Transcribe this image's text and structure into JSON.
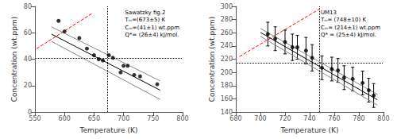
{
  "chart_data": [
    {
      "type": "line",
      "annotations": [
        "Sawatzky fig.2",
        "Tₘ=(673±5) K",
        "Cₘ=(41±1) wt.ppm",
        "Q*= (26±4) kJ/mol."
      ],
      "xlabel": "Temperature (K)",
      "ylabel": "Concentration (wt.ppm)",
      "xlim": [
        550,
        800
      ],
      "ylim": [
        0,
        80
      ],
      "xticks": [
        550,
        600,
        650,
        700,
        750,
        800
      ],
      "yticks": [
        0,
        20,
        40,
        60,
        80
      ],
      "grid": false,
      "series": [
        {
          "type": "line",
          "color": "red",
          "line_style": "dashed",
          "x": [
            553,
            648
          ],
          "values": [
            48.0,
            75.0
          ]
        },
        {
          "type": "line",
          "color": "#888888",
          "line_style": "solid",
          "x": [
            578,
            762
          ],
          "values": [
            64.5,
            23.5
          ]
        },
        {
          "type": "line",
          "color": "#888888",
          "line_style": "solid",
          "x": [
            578,
            762
          ],
          "values": [
            53.5,
            9.5
          ]
        },
        {
          "type": "line",
          "color": "black",
          "line_style": "solid",
          "x": [
            578,
            762
          ],
          "values": [
            59.0,
            16.5
          ]
        },
        {
          "type": "scatter",
          "color": "black",
          "marker": "circle",
          "x": [
            590,
            600,
            625,
            638,
            650,
            658,
            665,
            675,
            682,
            695,
            700,
            707,
            718,
            728,
            757
          ],
          "values": [
            69,
            61,
            56,
            48,
            43,
            40,
            39,
            43,
            41,
            30,
            35,
            35,
            28,
            27,
            21
          ]
        }
      ],
      "reference_lines": [
        {
          "axis": "y",
          "value": 41,
          "color": "black",
          "line_style": "dotted"
        },
        {
          "axis": "x",
          "value": 673,
          "color": "black",
          "line_style": "dotted"
        }
      ]
    },
    {
      "type": "line",
      "annotations": [
        "UM13",
        "Tₘ= (748±10) K",
        "Cₘ= (214±1) wt.ppm",
        "Q* = (25±4) kJ/mol."
      ],
      "xlabel": "Temperature (K)",
      "ylabel": "Concentration (wt.ppm)",
      "xlim": [
        680,
        800
      ],
      "ylim": [
        140,
        300
      ],
      "xticks": [
        680,
        700,
        720,
        740,
        760,
        780,
        800
      ],
      "yticks": [
        140,
        160,
        180,
        200,
        220,
        240,
        260,
        280,
        300
      ],
      "grid": false,
      "series": [
        {
          "type": "line",
          "color": "red",
          "line_style": "dashed",
          "x": [
            683,
            748
          ],
          "values": [
            224.0,
            296.0
          ]
        },
        {
          "type": "line",
          "color": "#888888",
          "line_style": "solid",
          "x": [
            700,
            795
          ],
          "values": [
            266.5,
            166.5
          ]
        },
        {
          "type": "line",
          "color": "#888888",
          "line_style": "solid",
          "x": [
            700,
            795
          ],
          "values": [
            254.5,
            150.5
          ]
        },
        {
          "type": "line",
          "color": "black",
          "line_style": "solid",
          "x": [
            700,
            795
          ],
          "values": [
            260.5,
            158.5
          ]
        },
        {
          "type": "scatter",
          "color": "black",
          "marker": "circle",
          "x": [
            706,
            712,
            720,
            726,
            730,
            737,
            742,
            750,
            758,
            763,
            768,
            775,
            783,
            788,
            792
          ],
          "values": [
            258,
            251,
            246,
            238,
            238,
            233,
            222,
            207,
            205,
            203,
            192,
            190,
            184,
            173,
            165
          ],
          "errors": [
            18,
            18,
            18,
            20,
            18,
            20,
            20,
            18,
            18,
            18,
            18,
            18,
            18,
            18,
            18
          ]
        }
      ],
      "reference_lines": [
        {
          "axis": "y",
          "value": 214,
          "color": "black",
          "line_style": "dotted"
        },
        {
          "axis": "x",
          "value": 748,
          "color": "black",
          "line_style": "dotted"
        }
      ]
    }
  ]
}
